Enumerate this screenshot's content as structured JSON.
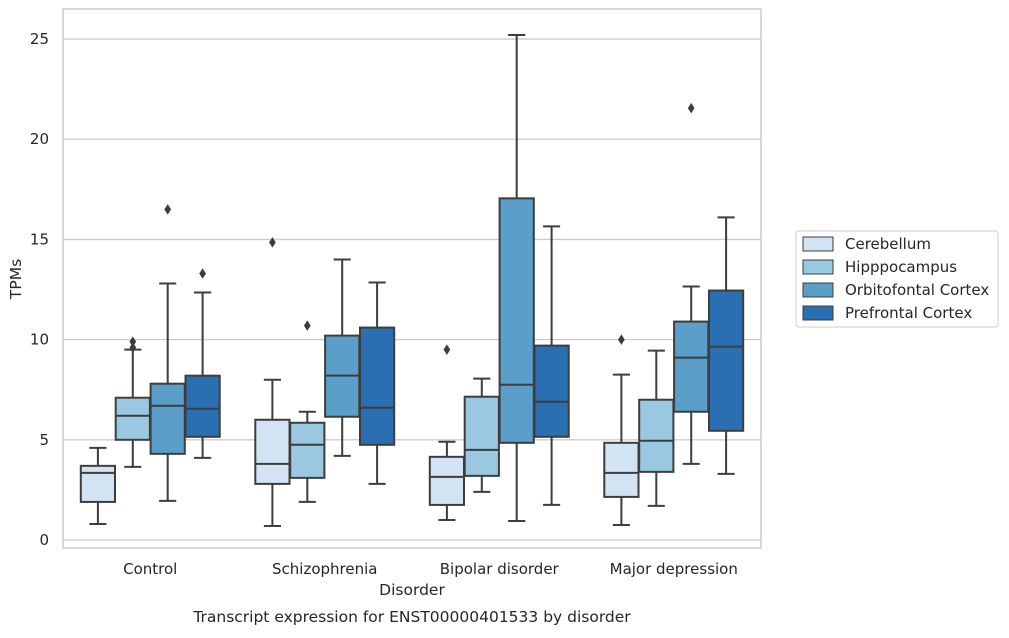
{
  "chart_data": {
    "type": "box",
    "caption": "Transcript expression for ENST00000401533 by disorder",
    "xlabel": "Disorder",
    "ylabel": "TPMs",
    "ylim": [
      -0.4,
      26.5
    ],
    "yticks": [
      0,
      5,
      10,
      15,
      20,
      25
    ],
    "grid": "horizontal",
    "legend_position": "right",
    "categories": [
      "Control",
      "Schizophrenia",
      "Bipolar disorder",
      "Major depression"
    ],
    "series": [
      {
        "name": "Cerebellum",
        "color": "#d2e3f3",
        "boxes": [
          {
            "whisker_low": 0.8,
            "q1": 1.9,
            "median": 3.35,
            "q3": 3.7,
            "whisker_high": 4.6,
            "outliers": []
          },
          {
            "whisker_low": 0.7,
            "q1": 2.8,
            "median": 3.8,
            "q3": 6.0,
            "whisker_high": 8.0,
            "outliers": [
              14.85
            ]
          },
          {
            "whisker_low": 1.0,
            "q1": 1.75,
            "median": 3.15,
            "q3": 4.15,
            "whisker_high": 4.9,
            "outliers": [
              9.5
            ]
          },
          {
            "whisker_low": 0.75,
            "q1": 2.15,
            "median": 3.35,
            "q3": 4.85,
            "whisker_high": 8.25,
            "outliers": [
              10.0
            ]
          }
        ]
      },
      {
        "name": "Hipppocampus",
        "color": "#9ac8e0",
        "boxes": [
          {
            "whisker_low": 3.65,
            "q1": 5.0,
            "median": 6.2,
            "q3": 7.1,
            "whisker_high": 9.5,
            "outliers": [
              9.6,
              9.9
            ]
          },
          {
            "whisker_low": 1.9,
            "q1": 3.1,
            "median": 4.75,
            "q3": 5.85,
            "whisker_high": 6.4,
            "outliers": [
              10.7
            ]
          },
          {
            "whisker_low": 2.4,
            "q1": 3.2,
            "median": 4.5,
            "q3": 7.15,
            "whisker_high": 8.05,
            "outliers": []
          },
          {
            "whisker_low": 1.7,
            "q1": 3.4,
            "median": 4.95,
            "q3": 7.0,
            "whisker_high": 9.45,
            "outliers": []
          }
        ]
      },
      {
        "name": "Orbitofontal Cortex",
        "color": "#5a9ec9",
        "boxes": [
          {
            "whisker_low": 1.95,
            "q1": 4.3,
            "median": 6.7,
            "q3": 7.8,
            "whisker_high": 12.8,
            "outliers": [
              16.5
            ]
          },
          {
            "whisker_low": 4.2,
            "q1": 6.15,
            "median": 8.2,
            "q3": 10.2,
            "whisker_high": 14.0,
            "outliers": []
          },
          {
            "whisker_low": 0.95,
            "q1": 4.85,
            "median": 7.75,
            "q3": 17.05,
            "whisker_high": 25.2,
            "outliers": []
          },
          {
            "whisker_low": 3.8,
            "q1": 6.4,
            "median": 9.1,
            "q3": 10.9,
            "whisker_high": 12.65,
            "outliers": [
              21.55
            ]
          }
        ]
      },
      {
        "name": "Prefrontal Cortex",
        "color": "#2a6fb2",
        "boxes": [
          {
            "whisker_low": 4.1,
            "q1": 5.15,
            "median": 6.55,
            "q3": 8.2,
            "whisker_high": 12.35,
            "outliers": [
              13.3
            ]
          },
          {
            "whisker_low": 2.8,
            "q1": 4.75,
            "median": 6.6,
            "q3": 10.6,
            "whisker_high": 12.85,
            "outliers": []
          },
          {
            "whisker_low": 1.75,
            "q1": 5.15,
            "median": 6.9,
            "q3": 9.7,
            "whisker_high": 15.65,
            "outliers": []
          },
          {
            "whisker_low": 3.3,
            "q1": 5.45,
            "median": 9.65,
            "q3": 12.45,
            "whisker_high": 16.1,
            "outliers": []
          }
        ]
      }
    ]
  }
}
